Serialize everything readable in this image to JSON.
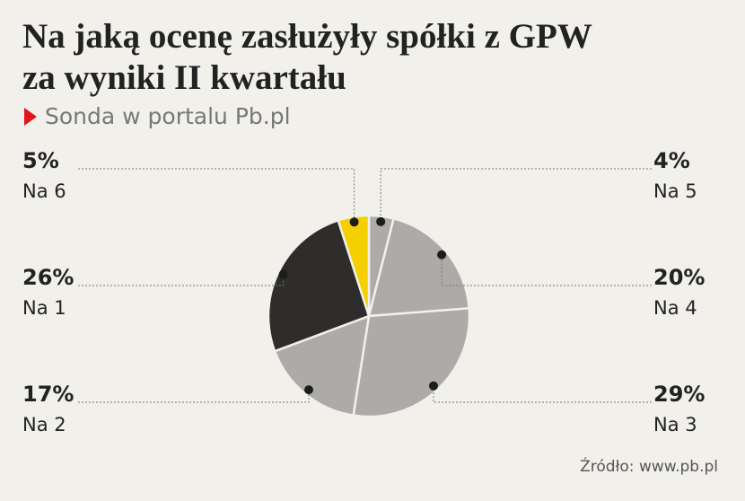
{
  "chart_data": {
    "type": "pie",
    "title": "Na jaką ocenę zasłużyły spółki z GPW za wyniki II kwartału",
    "title_lines": [
      "Na jaką ocenę zasłużyły spółki z GPW",
      "za wyniki II kwartału"
    ],
    "subtitle": "Sonda w portalu Pb.pl",
    "source": "Źródło: www.pb.pl",
    "categories": [
      "Na 5",
      "Na 4",
      "Na 3",
      "Na 2",
      "Na 1",
      "Na 6"
    ],
    "values": [
      4,
      20,
      29,
      17,
      26,
      5
    ],
    "value_labels": [
      "4%",
      "20%",
      "29%",
      "17%",
      "26%",
      "5%"
    ],
    "colors": [
      "#adaba7",
      "#adaba7",
      "#adaba7",
      "#adaba7",
      "#2f2d2c",
      "#f5d000"
    ]
  }
}
